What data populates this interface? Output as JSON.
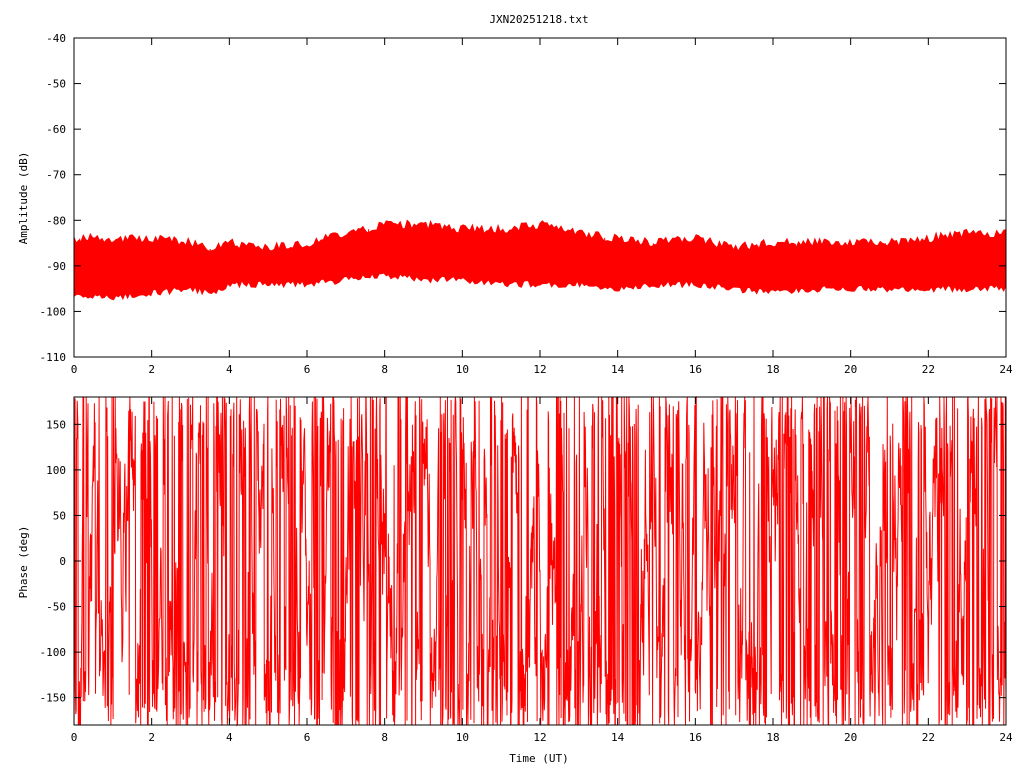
{
  "title": "JXN20251218.txt",
  "colors": {
    "series": "#ff0000",
    "axes": "#000000",
    "background": "#ffffff"
  },
  "chart_data": [
    {
      "type": "line",
      "title": "JXN20251218.txt",
      "xlabel": "",
      "ylabel": "Amplitude (dB)",
      "xlim": [
        0,
        24
      ],
      "ylim": [
        -110,
        -40
      ],
      "xticks": [
        "0",
        "2",
        "4",
        "6",
        "8",
        "10",
        "12",
        "14",
        "16",
        "18",
        "20",
        "22",
        "24"
      ],
      "yticks": [
        "-40",
        "-50",
        "-60",
        "-70",
        "-80",
        "-90",
        "-100",
        "-110"
      ],
      "grid": false,
      "series": [
        {
          "x": [
            0,
            1,
            2,
            3,
            3.5,
            4,
            5,
            6,
            7,
            8,
            9,
            10,
            11,
            12,
            13,
            14,
            15,
            16,
            17,
            18,
            19,
            20,
            21,
            22,
            23,
            24
          ],
          "envelope_upper": [
            -84,
            -84,
            -84,
            -85,
            -86,
            -85,
            -86,
            -85,
            -83,
            -81,
            -81,
            -82,
            -82,
            -81,
            -83,
            -84,
            -85,
            -84,
            -86,
            -85,
            -85,
            -85,
            -85,
            -84,
            -83,
            -83
          ],
          "envelope_lower": [
            -96,
            -97,
            -96,
            -95,
            -96,
            -94,
            -94,
            -94,
            -93,
            -92,
            -93,
            -93,
            -94,
            -94,
            -94,
            -95,
            -94,
            -94,
            -95,
            -96,
            -95,
            -95,
            -95,
            -95,
            -95,
            -95
          ],
          "mean": [
            -91,
            -92,
            -91,
            -91,
            -92,
            -90,
            -90,
            -89,
            -88,
            -87,
            -87,
            -88,
            -88,
            -88,
            -89,
            -90,
            -90,
            -89,
            -91,
            -91,
            -91,
            -90,
            -91,
            -91,
            -90,
            -90
          ]
        }
      ]
    },
    {
      "type": "line",
      "xlabel": "Time (UT)",
      "ylabel": "Phase (deg)",
      "xlim": [
        0,
        24
      ],
      "ylim": [
        -180,
        180
      ],
      "xticks": [
        "0",
        "2",
        "4",
        "6",
        "8",
        "10",
        "12",
        "14",
        "16",
        "18",
        "20",
        "22",
        "24"
      ],
      "yticks": [
        "150",
        "100",
        "50",
        "0",
        "-50",
        "-100",
        "-150"
      ],
      "grid": false,
      "series": [
        {
          "y_range": [
            -180,
            180
          ]
        }
      ]
    }
  ]
}
